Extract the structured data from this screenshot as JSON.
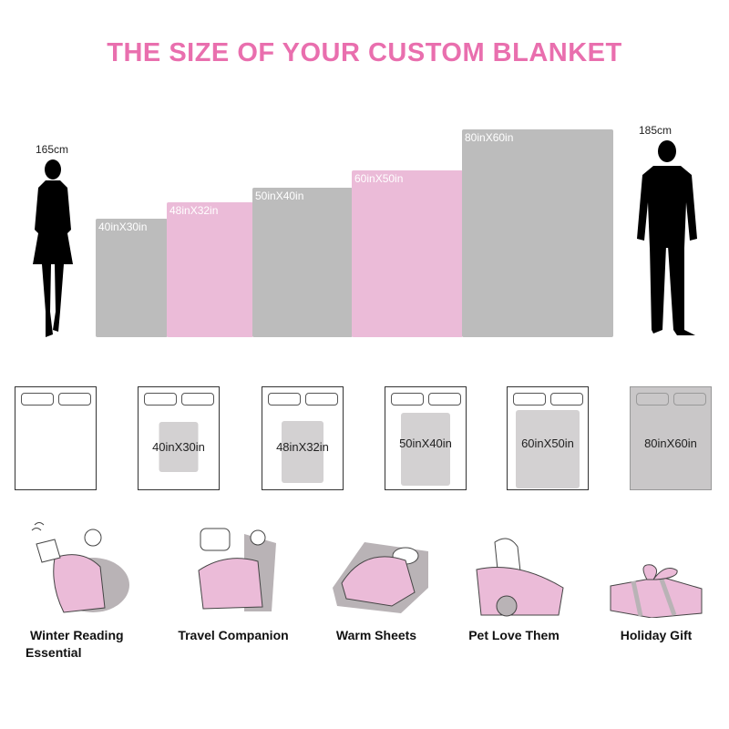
{
  "title": "THE SIZE OF YOUR CUSTOM BLANKET",
  "colors": {
    "accent": "#e96fae",
    "gray_blanket": "#bcbcbc",
    "pink_blanket": "#ebbbd8",
    "bed_blanket": "#d3d1d2"
  },
  "people": [
    {
      "label": "165cm",
      "icon": "woman-silhouette-icon"
    },
    {
      "label": "185cm",
      "icon": "man-silhouette-icon"
    }
  ],
  "sizes": [
    {
      "label": "40inX30in",
      "color": "gray"
    },
    {
      "label": "48inX32in",
      "color": "pink"
    },
    {
      "label": "50inX40in",
      "color": "gray"
    },
    {
      "label": "60inX50in",
      "color": "pink"
    },
    {
      "label": "80inX60in",
      "color": "gray"
    }
  ],
  "beds": [
    "40inX30in",
    "48inX32in",
    "50inX40in",
    "60inX50in",
    "80inX60in"
  ],
  "uses": [
    {
      "label": "Winter Reading Essential",
      "line1": "Winter Reading",
      "line2": "Essential",
      "icon": "reading-person-icon"
    },
    {
      "label": "Travel Companion",
      "icon": "airplane-seat-icon"
    },
    {
      "label": "Warm Sheets",
      "icon": "sleeping-in-bed-icon"
    },
    {
      "label": "Pet Love Them",
      "icon": "dog-with-blanket-icon"
    },
    {
      "label": "Holiday Gift",
      "icon": "gift-box-icon"
    }
  ]
}
